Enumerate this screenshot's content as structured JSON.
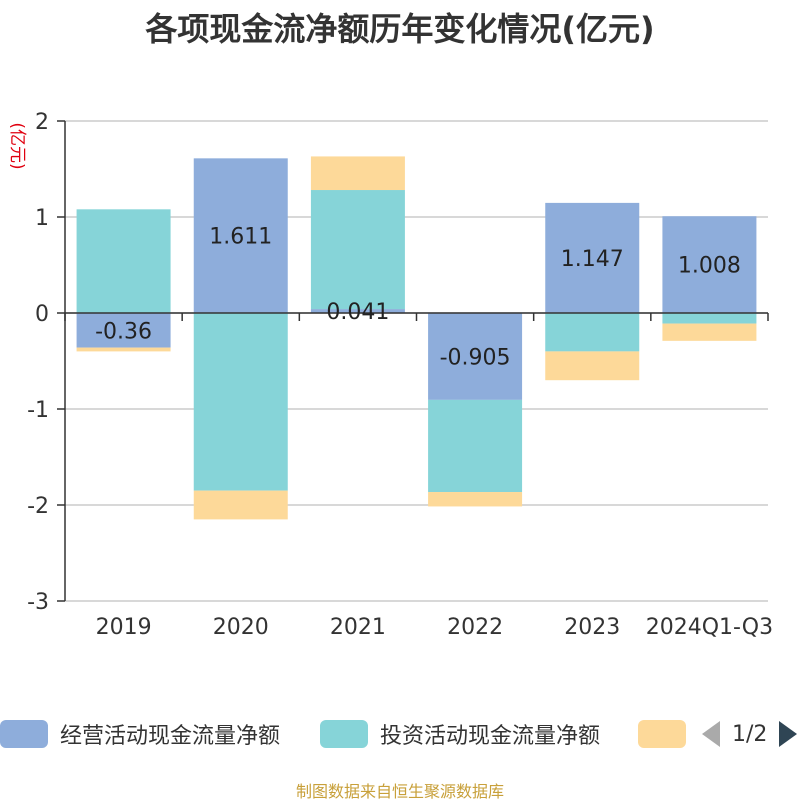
{
  "chart_data": {
    "type": "bar",
    "stacked": true,
    "title": "各项现金流净额历年变化情况(亿元)",
    "ylabel": "(亿元)",
    "xlabel": "",
    "ylim": [
      -3,
      2
    ],
    "yticks": [
      2,
      1,
      0,
      -1,
      -2,
      -3
    ],
    "grid": true,
    "categories": [
      "2019",
      "2020",
      "2021",
      "2022",
      "2023",
      "2024Q1-Q3"
    ],
    "series": [
      {
        "name": "经营活动现金流量净额",
        "color": "#8eaddb",
        "values": [
          -0.36,
          1.611,
          0.041,
          -0.905,
          1.147,
          1.008
        ],
        "labels": [
          "-0.36",
          "1.611",
          "0.041",
          "-0.905",
          "1.147",
          "1.008"
        ]
      },
      {
        "name": "投资活动现金流量净额",
        "color": "#86d4d8",
        "values": [
          1.08,
          -1.85,
          1.24,
          -0.96,
          -0.4,
          -0.11
        ]
      },
      {
        "name": "",
        "color": "#fdd999",
        "values": [
          -0.04,
          -0.3,
          0.35,
          -0.15,
          -0.3,
          -0.18
        ]
      }
    ],
    "legend_position": "bottom"
  },
  "legend": {
    "page": "1/2"
  },
  "source_note": "制图数据来自恒生聚源数据库"
}
